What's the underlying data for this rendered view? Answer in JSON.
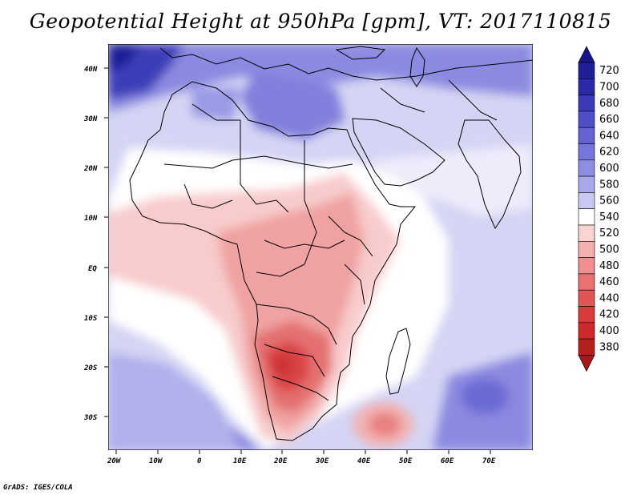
{
  "title": "Geopotential Height at 950hPa [gpm], VT: 2017110815",
  "credit": "GrADS: IGES/COLA",
  "map": {
    "lat_labels": [
      "40N",
      "30N",
      "20N",
      "10N",
      "EQ",
      "10S",
      "20S",
      "30S"
    ],
    "lon_labels": [
      "20W",
      "10W",
      "0",
      "10E",
      "20E",
      "30E",
      "40E",
      "50E",
      "60E",
      "70E"
    ],
    "lat_range": [
      -37,
      45
    ],
    "lon_range": [
      -23,
      80
    ]
  },
  "colorbar": {
    "levels": [
      {
        "value": "720",
        "color": "#1f1f96"
      },
      {
        "value": "700",
        "color": "#2a2aa6"
      },
      {
        "value": "680",
        "color": "#3a3ab8"
      },
      {
        "value": "660",
        "color": "#4f4fc8"
      },
      {
        "value": "640",
        "color": "#6363d2"
      },
      {
        "value": "620",
        "color": "#7676da"
      },
      {
        "value": "600",
        "color": "#8d8de2"
      },
      {
        "value": "580",
        "color": "#a8a8ea"
      },
      {
        "value": "560",
        "color": "#c8c8f2"
      },
      {
        "value": "540",
        "color": "#ffffff"
      },
      {
        "value": "520",
        "color": "#fad3d3"
      },
      {
        "value": "500",
        "color": "#f4b0b0"
      },
      {
        "value": "480",
        "color": "#ee9090"
      },
      {
        "value": "460",
        "color": "#e87272"
      },
      {
        "value": "440",
        "color": "#e05555"
      },
      {
        "value": "420",
        "color": "#d83c3c"
      },
      {
        "value": "400",
        "color": "#cd2b2b"
      },
      {
        "value": "380",
        "color": "#b52020"
      }
    ],
    "top_arrow_color": "#16168a",
    "bottom_arrow_color": "#a81818"
  }
}
